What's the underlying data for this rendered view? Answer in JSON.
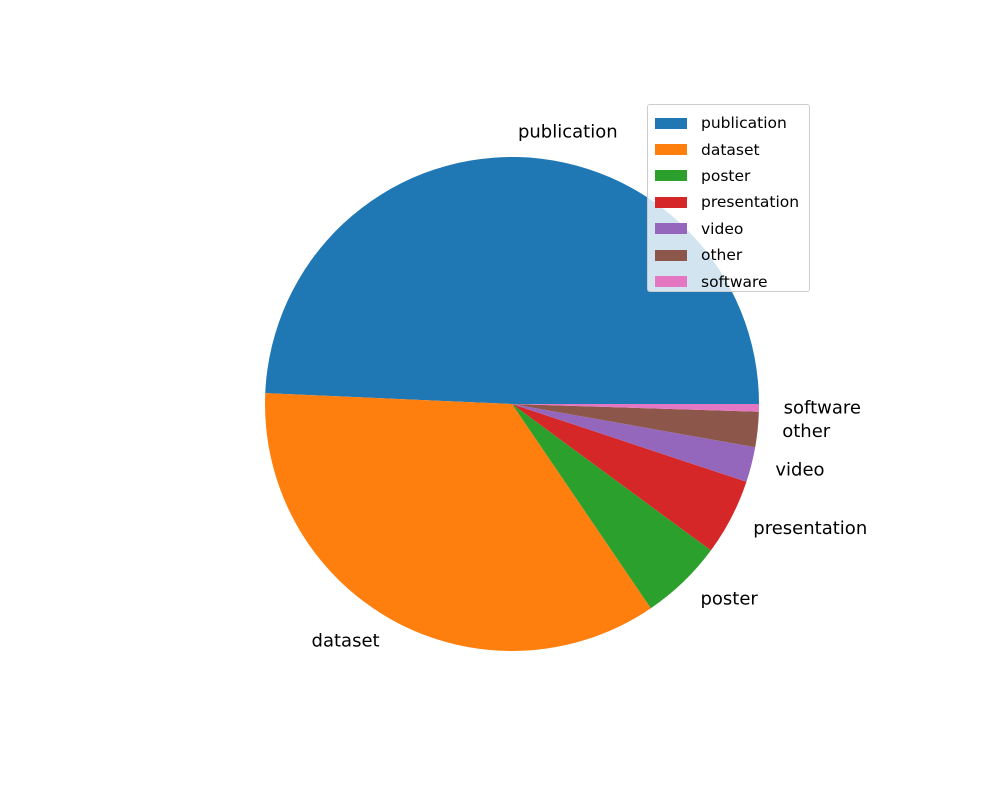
{
  "chart_data": {
    "type": "pie",
    "title": "",
    "labels": [
      "publication",
      "dataset",
      "poster",
      "presentation",
      "video",
      "other",
      "software"
    ],
    "values": [
      49.3,
      35.2,
      5.4,
      5.0,
      2.3,
      2.3,
      0.5
    ],
    "unit": "percent (estimated share)",
    "colors": [
      "#1f77b4",
      "#ff7f0e",
      "#2ca02c",
      "#d62728",
      "#9467bd",
      "#8c564b",
      "#e377c2"
    ],
    "start_angle_deg": 0,
    "direction": "counterclockwise",
    "legend": {
      "position": "upper-right",
      "entries": [
        "publication",
        "dataset",
        "poster",
        "presentation",
        "video",
        "other",
        "software"
      ]
    }
  }
}
